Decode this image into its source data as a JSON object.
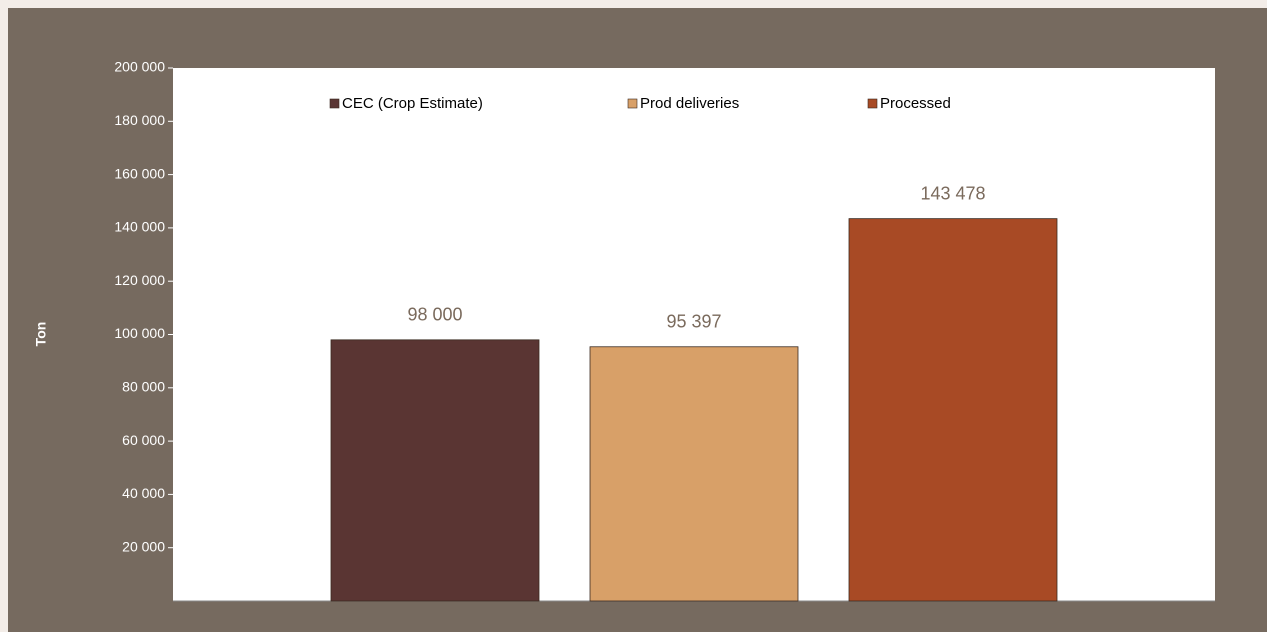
{
  "chart_data": {
    "type": "bar",
    "y_label": "Ton",
    "categories": [
      null
    ],
    "series": [
      {
        "name": "CEC (Crop Estimate)",
        "color": "#5a3533",
        "values": [
          98000
        ],
        "value_labels": [
          "98 000"
        ]
      },
      {
        "name": "Prod deliveries",
        "color": "#d8a068",
        "values": [
          95397
        ],
        "value_labels": [
          "95 397"
        ]
      },
      {
        "name": "Processed",
        "color": "#a84a25",
        "values": [
          143478
        ],
        "value_labels": [
          "143 478"
        ]
      }
    ],
    "ylim": [
      0,
      200000
    ],
    "yticks": [
      {
        "value": 20000,
        "label": "20 000"
      },
      {
        "value": 40000,
        "label": "40 000"
      },
      {
        "value": 60000,
        "label": "60 000"
      },
      {
        "value": 80000,
        "label": "80 000"
      },
      {
        "value": 100000,
        "label": "100 000"
      },
      {
        "value": 120000,
        "label": "120 000"
      },
      {
        "value": 140000,
        "label": "140 000"
      },
      {
        "value": 160000,
        "label": "160 000"
      },
      {
        "value": 180000,
        "label": "180 000"
      },
      {
        "value": 200000,
        "label": "200 000"
      }
    ],
    "legend": "top"
  }
}
